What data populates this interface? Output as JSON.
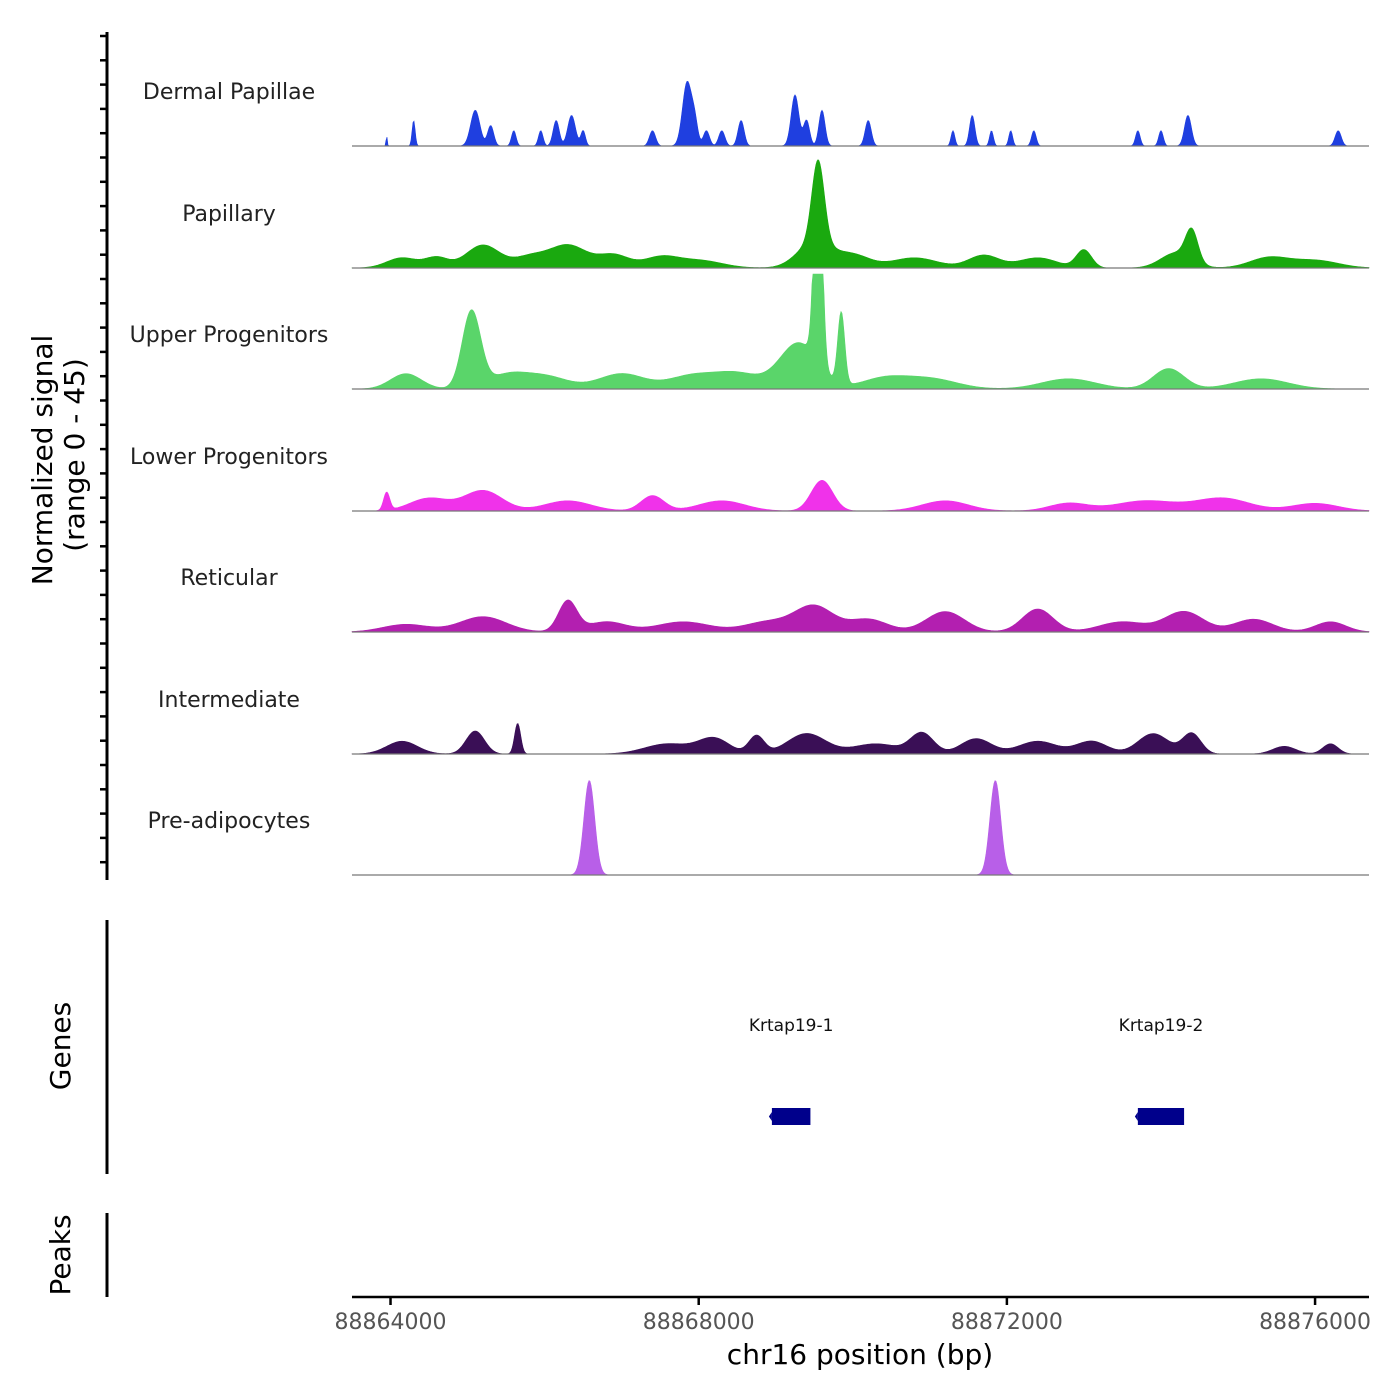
{
  "chart_data": {
    "type": "area",
    "ylabel": "Normalized signal",
    "ylabel_range": "(range 0 - 45)",
    "y_range": [
      0,
      45
    ],
    "xlabel": "chr16 position (bp)",
    "x_range": [
      88863500,
      88876700
    ],
    "x_ticks": [
      88864000,
      88868000,
      88872000,
      88876000
    ],
    "x_tick_labels": [
      "88864000",
      "88868000",
      "88872000",
      "88876000"
    ],
    "tracks": [
      {
        "name": "Dermal Papillae",
        "color": "#1f3fe0",
        "peaks": [
          [
            88863950,
            8,
            4
          ],
          [
            88864300,
            20,
            10
          ],
          [
            88865100,
            60,
            14
          ],
          [
            88865300,
            40,
            8
          ],
          [
            88865600,
            30,
            6
          ],
          [
            88865950,
            30,
            6
          ],
          [
            88866150,
            40,
            10
          ],
          [
            88866350,
            50,
            12
          ],
          [
            88866500,
            30,
            6
          ],
          [
            88867400,
            40,
            6
          ],
          [
            88867850,
            60,
            25
          ],
          [
            88867950,
            40,
            8
          ],
          [
            88868100,
            40,
            6
          ],
          [
            88868300,
            40,
            6
          ],
          [
            88868550,
            40,
            10
          ],
          [
            88869250,
            50,
            20
          ],
          [
            88869400,
            40,
            10
          ],
          [
            88869600,
            40,
            14
          ],
          [
            88870200,
            40,
            10
          ],
          [
            88871300,
            25,
            6
          ],
          [
            88871550,
            35,
            12
          ],
          [
            88871800,
            25,
            6
          ],
          [
            88872050,
            25,
            6
          ],
          [
            88872350,
            30,
            6
          ],
          [
            88873700,
            30,
            6
          ],
          [
            88874000,
            30,
            6
          ],
          [
            88874350,
            45,
            12
          ],
          [
            88876300,
            40,
            6
          ]
        ]
      },
      {
        "name": "Papillary",
        "color": "#1aa90f",
        "peaks": [
          [
            88864150,
            200,
            4
          ],
          [
            88864600,
            150,
            4
          ],
          [
            88865200,
            220,
            9
          ],
          [
            88865800,
            200,
            4
          ],
          [
            88866300,
            250,
            9
          ],
          [
            88866900,
            200,
            5
          ],
          [
            88867500,
            220,
            4
          ],
          [
            88868000,
            300,
            3
          ],
          [
            88869500,
            220,
            10
          ],
          [
            88869550,
            80,
            32
          ],
          [
            88870000,
            220,
            5
          ],
          [
            88870800,
            300,
            4
          ],
          [
            88871700,
            200,
            5
          ],
          [
            88872400,
            250,
            4
          ],
          [
            88873000,
            100,
            7
          ],
          [
            88874200,
            200,
            6
          ],
          [
            88874400,
            80,
            12
          ],
          [
            88875400,
            250,
            4
          ],
          [
            88876000,
            300,
            3
          ]
        ]
      },
      {
        "name": "Upper Progenitors",
        "color": "#5ad56a",
        "peaks": [
          [
            88864200,
            200,
            6
          ],
          [
            88865050,
            120,
            30
          ],
          [
            88865500,
            250,
            5
          ],
          [
            88866000,
            300,
            5
          ],
          [
            88867000,
            300,
            6
          ],
          [
            88867900,
            300,
            5
          ],
          [
            88868500,
            300,
            6
          ],
          [
            88869300,
            250,
            18
          ],
          [
            88869550,
            50,
            95
          ],
          [
            88869850,
            45,
            28
          ],
          [
            88870400,
            300,
            4
          ],
          [
            88871000,
            350,
            4
          ],
          [
            88872800,
            350,
            4
          ],
          [
            88874100,
            200,
            8
          ],
          [
            88875300,
            350,
            4
          ]
        ]
      },
      {
        "name": "Lower Progenitors",
        "color": "#f032ea",
        "peaks": [
          [
            88863950,
            40,
            7
          ],
          [
            88864500,
            250,
            5
          ],
          [
            88865200,
            250,
            8
          ],
          [
            88866300,
            300,
            4
          ],
          [
            88867400,
            150,
            6
          ],
          [
            88868300,
            300,
            4
          ],
          [
            88869600,
            140,
            12
          ],
          [
            88871200,
            300,
            4
          ],
          [
            88872800,
            250,
            3
          ],
          [
            88873800,
            400,
            4
          ],
          [
            88874800,
            350,
            5
          ],
          [
            88876000,
            300,
            3
          ]
        ]
      },
      {
        "name": "Reticular",
        "color": "#b31fb0",
        "peaks": [
          [
            88864200,
            300,
            3
          ],
          [
            88865200,
            300,
            6
          ],
          [
            88866300,
            120,
            12
          ],
          [
            88866800,
            250,
            4
          ],
          [
            88867800,
            350,
            4
          ],
          [
            88868900,
            300,
            4
          ],
          [
            88869500,
            250,
            10
          ],
          [
            88870200,
            250,
            5
          ],
          [
            88871200,
            250,
            8
          ],
          [
            88872400,
            200,
            9
          ],
          [
            88873500,
            300,
            4
          ],
          [
            88874300,
            250,
            8
          ],
          [
            88875200,
            250,
            5
          ],
          [
            88876200,
            200,
            4
          ]
        ]
      },
      {
        "name": "Intermediate",
        "color": "#3a0f56",
        "peaks": [
          [
            88864150,
            200,
            5
          ],
          [
            88865100,
            120,
            9
          ],
          [
            88865650,
            40,
            12
          ],
          [
            88867600,
            300,
            4
          ],
          [
            88868200,
            200,
            6
          ],
          [
            88868750,
            100,
            7
          ],
          [
            88869400,
            250,
            8
          ],
          [
            88870300,
            300,
            4
          ],
          [
            88870900,
            150,
            8
          ],
          [
            88871600,
            200,
            6
          ],
          [
            88872400,
            250,
            5
          ],
          [
            88873100,
            200,
            5
          ],
          [
            88873900,
            200,
            8
          ],
          [
            88874400,
            120,
            8
          ],
          [
            88875600,
            150,
            3
          ],
          [
            88876200,
            100,
            4
          ]
        ]
      },
      {
        "name": "Pre-adipocytes",
        "color": "#b85fe8",
        "peaks": [
          [
            88866580,
            70,
            37
          ],
          [
            88871850,
            70,
            37
          ]
        ]
      }
    ],
    "genes_track_label": "Genes",
    "genes": [
      {
        "name": "Krtap19-1",
        "start": 88868950,
        "end": 88869450,
        "strand": "-"
      },
      {
        "name": "Krtap19-2",
        "start": 88873700,
        "end": 88874300,
        "strand": "-"
      }
    ],
    "gene_color": "#00008b",
    "peaks_track_label": "Peaks"
  }
}
